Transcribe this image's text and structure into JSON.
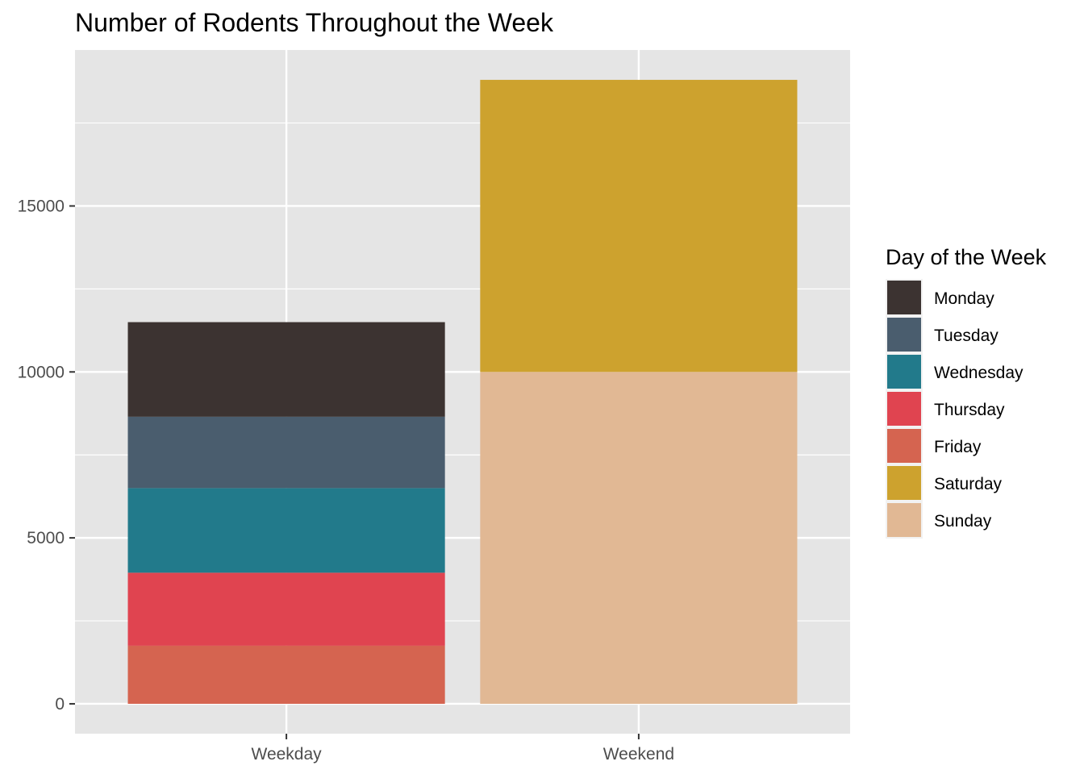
{
  "chart_data": {
    "type": "bar",
    "stacked": true,
    "title": "Number of Rodents Throughout the Week",
    "xlabel": "",
    "ylabel": "",
    "categories": [
      "Weekday",
      "Weekend"
    ],
    "ylim": [
      -900,
      19700
    ],
    "yticks": [
      0,
      5000,
      10000,
      15000
    ],
    "grid": true,
    "legend": {
      "title": "Day of the Week",
      "position": "right"
    },
    "series": [
      {
        "name": "Monday",
        "color": "#3c3331",
        "values": [
          2850,
          0
        ]
      },
      {
        "name": "Tuesday",
        "color": "#4a5d6e",
        "values": [
          2150,
          0
        ]
      },
      {
        "name": "Wednesday",
        "color": "#227a8b",
        "values": [
          2550,
          0
        ]
      },
      {
        "name": "Thursday",
        "color": "#e04450",
        "values": [
          2200,
          0
        ]
      },
      {
        "name": "Friday",
        "color": "#d56450",
        "values": [
          1750,
          0
        ]
      },
      {
        "name": "Saturday",
        "color": "#cda22e",
        "values": [
          0,
          8800
        ]
      },
      {
        "name": "Sunday",
        "color": "#e1b894",
        "values": [
          0,
          10000
        ]
      }
    ],
    "stack_order_bottom_to_top": [
      "Friday",
      "Thursday",
      "Wednesday",
      "Tuesday",
      "Monday",
      "Sunday",
      "Saturday"
    ]
  }
}
